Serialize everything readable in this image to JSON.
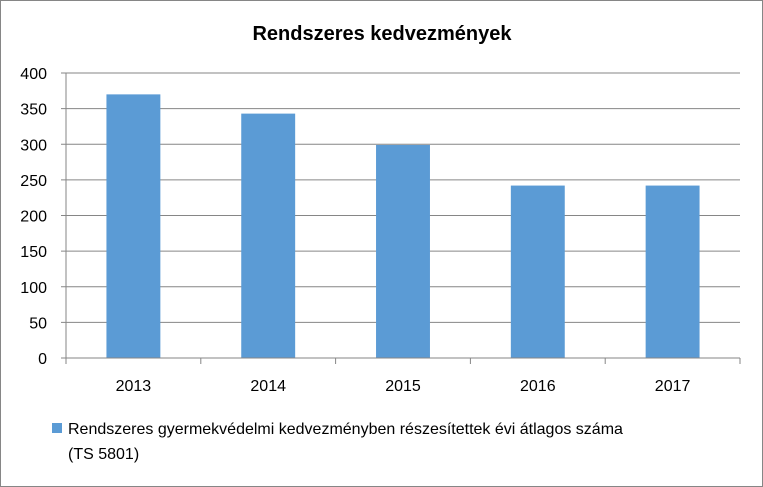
{
  "chart_data": {
    "type": "bar",
    "title": "Rendszeres kedvezmények",
    "categories": [
      "2013",
      "2014",
      "2015",
      "2016",
      "2017"
    ],
    "series": [
      {
        "name": "Rendszeres gyermekvédelmi kedvezményben részesítettek évi átlagos száma (TS 5801)",
        "values": [
          370,
          343,
          299,
          242,
          242
        ],
        "color": "#5B9BD5"
      }
    ],
    "ylim": [
      0,
      400
    ],
    "yticks": [
      "0",
      "50",
      "100",
      "150",
      "200",
      "250",
      "300",
      "350",
      "400"
    ],
    "grid": true,
    "legend_position": "bottom-left"
  },
  "legend": {
    "line1": "Rendszeres gyermekvédelmi kedvezményben részesítettek évi átlagos száma",
    "line2": "(TS 5801)"
  }
}
